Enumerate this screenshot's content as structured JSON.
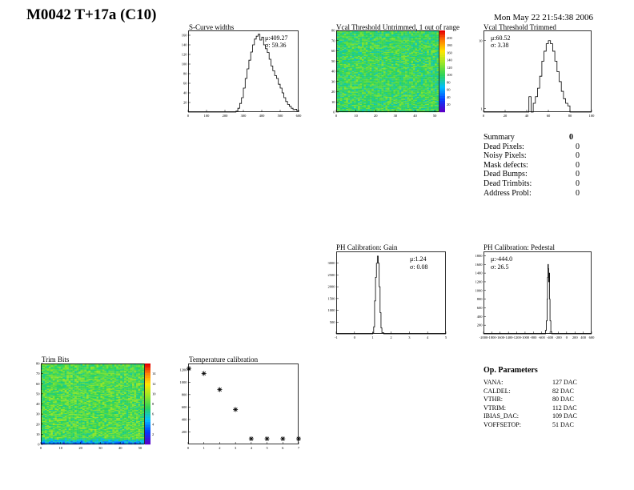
{
  "header": {
    "title": "M0042 T+17a (C10)",
    "date": "Mon May 22 21:54:38 2006"
  },
  "chart_data": [
    {
      "id": "scurve",
      "type": "line",
      "title": "S-Curve widths",
      "xlim": [
        0,
        600
      ],
      "ylim": [
        0,
        170
      ],
      "xticks": [
        "0",
        "100",
        "200",
        "300",
        "400",
        "500",
        "600"
      ],
      "yticks": [
        "20",
        "40",
        "60",
        "80",
        "100",
        "120",
        "140",
        "160"
      ],
      "stats": [
        {
          "label": "μ:",
          "value": "409.27"
        },
        {
          "label": "σ:",
          "value": "59.36"
        }
      ],
      "x": [
        0,
        20,
        40,
        60,
        80,
        100,
        120,
        140,
        160,
        180,
        200,
        220,
        240,
        260,
        270,
        280,
        290,
        300,
        310,
        320,
        330,
        340,
        350,
        360,
        370,
        380,
        390,
        400,
        410,
        420,
        430,
        440,
        450,
        460,
        470,
        480,
        490,
        500,
        510,
        520,
        530,
        540,
        550,
        560,
        570,
        580,
        590,
        600
      ],
      "y": [
        0,
        0,
        0,
        0,
        0,
        0,
        0,
        0,
        0,
        0,
        0,
        0,
        0,
        2,
        8,
        18,
        30,
        50,
        70,
        90,
        108,
        125,
        140,
        152,
        158,
        162,
        150,
        156,
        140,
        132,
        124,
        110,
        96,
        86,
        76,
        70,
        58,
        50,
        40,
        30,
        22,
        16,
        12,
        8,
        5,
        6,
        3,
        0
      ]
    },
    {
      "id": "vcal_untrimmed",
      "type": "heatmap",
      "title": "Vcal Threshold Untrimmed, 1 out of range",
      "xlim": [
        0,
        52
      ],
      "ylim": [
        0,
        80
      ],
      "xticks": [
        "0",
        "10",
        "20",
        "30",
        "40",
        "50"
      ],
      "yticks": [
        "0",
        "10",
        "20",
        "30",
        "40",
        "50",
        "60",
        "70",
        "80"
      ],
      "zticks": [
        "20",
        "40",
        "60",
        "80",
        "100",
        "120",
        "140",
        "160",
        "180",
        "200"
      ]
    },
    {
      "id": "vcal_trimmed",
      "type": "line",
      "title": "Vcal Threshold Trimmed",
      "xlim": [
        0,
        100
      ],
      "ylim": [
        0,
        10
      ],
      "xticks": [
        "0",
        "20",
        "40",
        "60",
        "80",
        "100"
      ],
      "yticks": [
        "1",
        "10"
      ],
      "yscale": "log",
      "stats": [
        {
          "label": "μ:",
          "value": "60.52"
        },
        {
          "label": "σ:",
          "value": "3.38"
        }
      ],
      "x": [
        0,
        40,
        42,
        44,
        46,
        48,
        50,
        52,
        54,
        56,
        58,
        60,
        62,
        64,
        66,
        68,
        70,
        72,
        74,
        76,
        78,
        80,
        100
      ],
      "y": [
        0,
        0,
        1.5,
        0,
        1.2,
        1.5,
        2,
        3,
        5,
        7,
        9,
        10,
        9,
        7,
        5,
        3.5,
        2.5,
        1.8,
        1.4,
        1.2,
        1.1,
        0,
        0
      ]
    },
    {
      "id": "ph_gain",
      "type": "line",
      "title": "PH Calibration: Gain",
      "xlim": [
        -1,
        5
      ],
      "ylim": [
        0,
        3500
      ],
      "xticks": [
        "-1",
        "0",
        "1",
        "2",
        "3",
        "4",
        "5"
      ],
      "yticks": [
        "500",
        "1000",
        "1500",
        "2000",
        "2500",
        "3000"
      ],
      "stats": [
        {
          "label": "μ:",
          "value": "1.24"
        },
        {
          "label": "σ:",
          "value": "0.08"
        }
      ],
      "x": [
        -1,
        0.9,
        1.0,
        1.05,
        1.1,
        1.15,
        1.2,
        1.25,
        1.3,
        1.35,
        1.4,
        1.45,
        1.5,
        1.6,
        5
      ],
      "y": [
        0,
        0,
        50,
        300,
        1400,
        2400,
        3000,
        3300,
        3000,
        2000,
        900,
        250,
        50,
        0,
        0
      ]
    },
    {
      "id": "ph_pedestal",
      "type": "line",
      "title": "PH Calibration: Pedestal",
      "xlim": [
        -2000,
        600
      ],
      "xticks": [
        "-2000",
        "-1800",
        "-1600",
        "-1400",
        "-1200",
        "-1000",
        "-800",
        "-600",
        "-400",
        "-200",
        "0",
        "200",
        "400",
        "600"
      ],
      "ylim": [
        0,
        1900
      ],
      "yticks": [
        "200",
        "400",
        "600",
        "800",
        "1000",
        "1200",
        "1400",
        "1600",
        "1800"
      ],
      "stats": [
        {
          "label": "μ:",
          "value": "-444.0"
        },
        {
          "label": "σ:",
          "value": "26.5"
        }
      ],
      "x": [
        -2000,
        -530,
        -510,
        -490,
        -470,
        -460,
        -450,
        -440,
        -430,
        -420,
        -410,
        -400,
        -380,
        -360,
        600
      ],
      "y": [
        0,
        0,
        80,
        300,
        800,
        1300,
        1600,
        1500,
        1200,
        1400,
        800,
        300,
        50,
        0,
        0
      ]
    },
    {
      "id": "trim_bits",
      "type": "heatmap",
      "title": "Trim Bits",
      "xlim": [
        0,
        52
      ],
      "ylim": [
        0,
        80
      ],
      "xticks": [
        "0",
        "10",
        "20",
        "30",
        "40",
        "50"
      ],
      "yticks": [
        "0",
        "10",
        "20",
        "30",
        "40",
        "50",
        "60",
        "70",
        "80"
      ],
      "zticks": [
        "2",
        "4",
        "6",
        "8",
        "10",
        "12",
        "14"
      ]
    },
    {
      "id": "temp_calibration",
      "type": "scatter",
      "title": "Temperature calibration",
      "xlim": [
        0,
        7
      ],
      "ylim": [
        0,
        1300
      ],
      "xticks": [
        "0",
        "1",
        "2",
        "3",
        "4",
        "5",
        "6",
        "7"
      ],
      "yticks": [
        "200",
        "400",
        "600",
        "800",
        "1000",
        "1200"
      ],
      "x": [
        0,
        1,
        2,
        3,
        4,
        5,
        6,
        7
      ],
      "y": [
        1220,
        1140,
        880,
        560,
        0,
        0,
        0,
        0
      ]
    }
  ],
  "summary": {
    "title": "Summary",
    "title_value": "0",
    "rows": [
      {
        "label": "Dead Pixels:",
        "value": "0"
      },
      {
        "label": "Noisy Pixels:",
        "value": "0"
      },
      {
        "label": "Mask defects:",
        "value": "0"
      },
      {
        "label": "Dead Bumps:",
        "value": "0"
      },
      {
        "label": "Dead Trimbits:",
        "value": "0"
      },
      {
        "label": "Address Probl:",
        "value": "0"
      }
    ]
  },
  "op_params": {
    "title": "Op. Parameters",
    "rows": [
      {
        "label": "VANA:",
        "value": "127 DAC"
      },
      {
        "label": "CALDEL:",
        "value": "82 DAC"
      },
      {
        "label": "VTHR:",
        "value": "80 DAC"
      },
      {
        "label": "VTRIM:",
        "value": "112 DAC"
      },
      {
        "label": "IBIAS_DAC:",
        "value": "109 DAC"
      },
      {
        "label": "VOFFSETOP:",
        "value": "51 DAC"
      }
    ]
  }
}
